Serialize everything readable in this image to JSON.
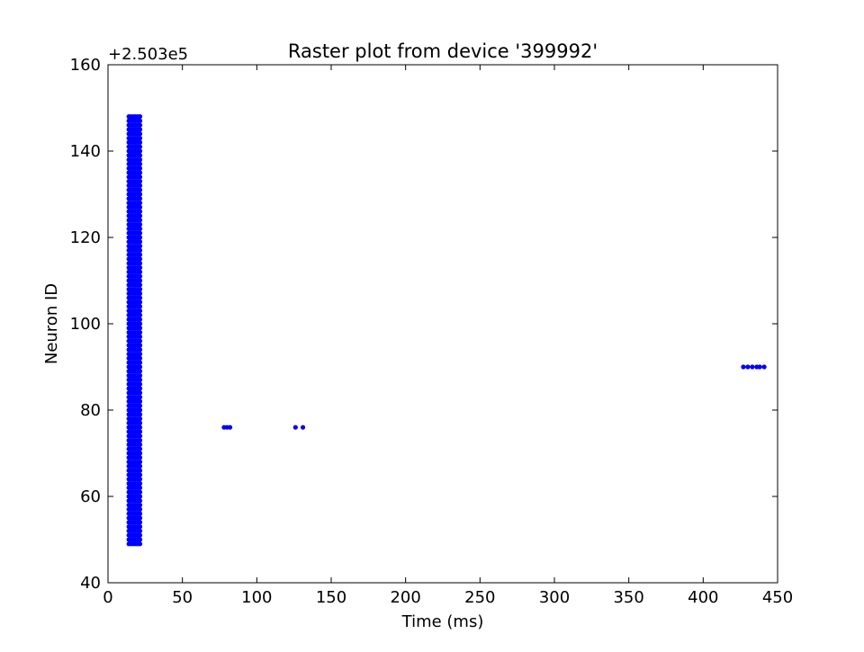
{
  "chart_data": {
    "type": "scatter",
    "title": "Raster plot from device '399992'",
    "xlabel": "Time (ms)",
    "ylabel": "Neuron ID",
    "y_offset_label": "+2.503e5",
    "xlim": [
      0,
      450
    ],
    "ylim": [
      40,
      160
    ],
    "xticks": [
      0,
      50,
      100,
      150,
      200,
      250,
      300,
      350,
      400,
      450
    ],
    "yticks": [
      40,
      60,
      80,
      100,
      120,
      140,
      160
    ],
    "grid": false,
    "legend": "none",
    "marker_color": "#0000ff",
    "series": [
      {
        "type": "column",
        "id_range": [
          49,
          148
        ],
        "x": [
          14,
          15.5,
          17,
          18.5,
          20,
          21.5
        ]
      },
      {
        "type": "points",
        "points": [
          [
            78,
            76
          ],
          [
            80,
            76
          ],
          [
            82,
            76
          ],
          [
            126,
            76
          ],
          [
            131,
            76
          ],
          [
            427,
            90
          ],
          [
            430,
            90
          ],
          [
            433,
            90
          ],
          [
            436,
            90
          ],
          [
            438,
            90
          ],
          [
            441,
            90
          ]
        ]
      }
    ]
  }
}
